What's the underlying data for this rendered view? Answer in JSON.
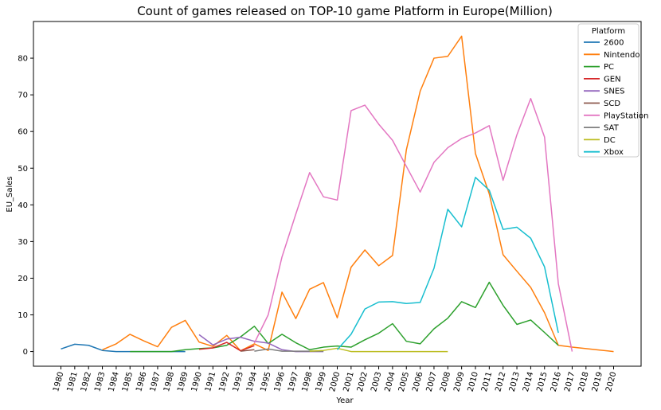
{
  "chart_data": {
    "type": "line",
    "title": "Count of games released on TOP-10 game Platform in Europe(Million)",
    "xlabel": "Year",
    "ylabel": "EU_Sales",
    "x": [
      "1980",
      "1981",
      "1982",
      "1983",
      "1984",
      "1985",
      "1986",
      "1987",
      "1988",
      "1989",
      "1990",
      "1991",
      "1992",
      "1993",
      "1994",
      "1995",
      "1996",
      "1997",
      "1998",
      "1999",
      "2000",
      "2001",
      "2002",
      "2003",
      "2004",
      "2005",
      "2006",
      "2007",
      "2008",
      "2009",
      "2010",
      "2011",
      "2012",
      "2013",
      "2014",
      "2015",
      "2016",
      "2017",
      "2018",
      "2019",
      "2020"
    ],
    "xlim": [
      1980,
      2020
    ],
    "ylim": [
      -4,
      90
    ],
    "yticks": [
      0,
      10,
      20,
      30,
      40,
      50,
      60,
      70,
      80
    ],
    "grid": false,
    "legend": {
      "title": "Platform",
      "placement": "top-right"
    },
    "series": [
      {
        "name": "2600",
        "color": "#1f77b4",
        "points": [
          [
            1980,
            0.7
          ],
          [
            1981,
            2.0
          ],
          [
            1982,
            1.7
          ],
          [
            1983,
            0.3
          ],
          [
            1984,
            0.0
          ],
          [
            1985,
            0.0
          ],
          [
            1986,
            0.0
          ],
          [
            1987,
            0.0
          ],
          [
            1988,
            0.0
          ],
          [
            1989,
            0.0
          ]
        ]
      },
      {
        "name": "Nintendo",
        "color": "#ff7f0e",
        "points": [
          [
            1983,
            0.5
          ],
          [
            1984,
            2.1
          ],
          [
            1985,
            4.7
          ],
          [
            1986,
            2.9
          ],
          [
            1987,
            1.3
          ],
          [
            1988,
            6.6
          ],
          [
            1989,
            8.5
          ],
          [
            1990,
            2.6
          ],
          [
            1991,
            1.4
          ],
          [
            1992,
            4.4
          ],
          [
            1993,
            0.2
          ],
          [
            1994,
            2.1
          ],
          [
            1995,
            0.3
          ],
          [
            1996,
            16.2
          ],
          [
            1997,
            9.0
          ],
          [
            1998,
            17.0
          ],
          [
            1999,
            18.8
          ],
          [
            2000,
            9.2
          ],
          [
            2001,
            23.0
          ],
          [
            2002,
            27.7
          ],
          [
            2003,
            23.4
          ],
          [
            2004,
            26.2
          ],
          [
            2005,
            55.0
          ],
          [
            2006,
            71.0
          ],
          [
            2007,
            80.0
          ],
          [
            2008,
            80.5
          ],
          [
            2009,
            86.0
          ],
          [
            2010,
            54.0
          ],
          [
            2011,
            43.0
          ],
          [
            2012,
            26.4
          ],
          [
            2013,
            21.9
          ],
          [
            2014,
            17.5
          ],
          [
            2015,
            10.6
          ],
          [
            2016,
            1.7
          ],
          [
            2017,
            1.2
          ],
          [
            2018,
            0.8
          ],
          [
            2019,
            0.4
          ],
          [
            2020,
            0.0
          ]
        ]
      },
      {
        "name": "PC",
        "color": "#2ca02c",
        "points": [
          [
            1985,
            0.0
          ],
          [
            1986,
            0.0
          ],
          [
            1987,
            0.0
          ],
          [
            1988,
            0.0
          ],
          [
            1989,
            0.5
          ],
          [
            1990,
            0.8
          ],
          [
            1991,
            1.0
          ],
          [
            1992,
            1.7
          ],
          [
            1993,
            4.0
          ],
          [
            1994,
            6.9
          ],
          [
            1995,
            2.2
          ],
          [
            1996,
            4.7
          ],
          [
            1997,
            2.4
          ],
          [
            1998,
            0.5
          ],
          [
            1999,
            1.2
          ],
          [
            2000,
            1.5
          ],
          [
            2001,
            1.2
          ],
          [
            2002,
            3.2
          ],
          [
            2003,
            5.0
          ],
          [
            2004,
            7.6
          ],
          [
            2005,
            2.8
          ],
          [
            2006,
            2.1
          ],
          [
            2007,
            6.2
          ],
          [
            2008,
            9.1
          ],
          [
            2009,
            13.6
          ],
          [
            2010,
            12.0
          ],
          [
            2011,
            18.9
          ],
          [
            2012,
            12.6
          ],
          [
            2013,
            7.4
          ],
          [
            2014,
            8.6
          ],
          [
            2015,
            5.2
          ],
          [
            2016,
            1.7
          ]
        ]
      },
      {
        "name": "GEN",
        "color": "#d62728",
        "points": [
          [
            1990,
            0.6
          ],
          [
            1991,
            1.0
          ],
          [
            1992,
            2.5
          ],
          [
            1993,
            0.2
          ],
          [
            1994,
            1.6
          ]
        ]
      },
      {
        "name": "SNES",
        "color": "#9467bd",
        "points": [
          [
            1990,
            4.6
          ],
          [
            1991,
            1.8
          ],
          [
            1992,
            3.4
          ],
          [
            1993,
            3.9
          ],
          [
            1994,
            2.8
          ],
          [
            1995,
            2.3
          ],
          [
            1996,
            0.5
          ],
          [
            1997,
            0.0
          ],
          [
            1998,
            0.0
          ],
          [
            1999,
            0.0
          ]
        ]
      },
      {
        "name": "SCD",
        "color": "#8c564b",
        "points": [
          [
            1993,
            0.1
          ],
          [
            1994,
            0.5
          ]
        ]
      },
      {
        "name": "PlayStation",
        "color": "#e377c2",
        "points": [
          [
            1994,
            2.3
          ],
          [
            1995,
            10.0
          ],
          [
            1996,
            25.8
          ],
          [
            1997,
            37.5
          ],
          [
            1998,
            48.8
          ],
          [
            1999,
            42.2
          ],
          [
            2000,
            41.3
          ],
          [
            2001,
            65.7
          ],
          [
            2002,
            67.2
          ],
          [
            2003,
            62.0
          ],
          [
            2004,
            57.6
          ],
          [
            2005,
            50.5
          ],
          [
            2006,
            43.5
          ],
          [
            2007,
            51.6
          ],
          [
            2008,
            55.6
          ],
          [
            2009,
            58.1
          ],
          [
            2010,
            59.6
          ],
          [
            2011,
            61.6
          ],
          [
            2012,
            46.7
          ],
          [
            2013,
            59.1
          ],
          [
            2014,
            69.0
          ],
          [
            2015,
            58.5
          ],
          [
            2016,
            18.5
          ],
          [
            2017,
            0.0
          ]
        ]
      },
      {
        "name": "SAT",
        "color": "#7f7f7f",
        "points": [
          [
            1994,
            0.1
          ],
          [
            1995,
            0.7
          ],
          [
            1996,
            0.1
          ],
          [
            1997,
            0.1
          ],
          [
            1998,
            0.1
          ],
          [
            1999,
            0.1
          ]
        ]
      },
      {
        "name": "DC",
        "color": "#bcbd22",
        "points": [
          [
            1998,
            0.1
          ],
          [
            1999,
            0.3
          ],
          [
            2000,
            0.9
          ],
          [
            2001,
            0.0
          ],
          [
            2002,
            0.0
          ],
          [
            2003,
            0.0
          ],
          [
            2004,
            0.0
          ],
          [
            2005,
            0.0
          ],
          [
            2006,
            0.0
          ],
          [
            2007,
            0.0
          ],
          [
            2008,
            0.0
          ]
        ]
      },
      {
        "name": "Xbox",
        "color": "#17becf",
        "points": [
          [
            2000,
            0.5
          ],
          [
            2001,
            4.7
          ],
          [
            2002,
            11.6
          ],
          [
            2003,
            13.5
          ],
          [
            2004,
            13.6
          ],
          [
            2005,
            13.1
          ],
          [
            2006,
            13.4
          ],
          [
            2007,
            22.7
          ],
          [
            2008,
            38.8
          ],
          [
            2009,
            34.0
          ],
          [
            2010,
            47.5
          ],
          [
            2011,
            44.0
          ],
          [
            2012,
            33.3
          ],
          [
            2013,
            33.9
          ],
          [
            2014,
            30.9
          ],
          [
            2015,
            23.1
          ],
          [
            2016,
            5.1
          ]
        ]
      }
    ]
  }
}
